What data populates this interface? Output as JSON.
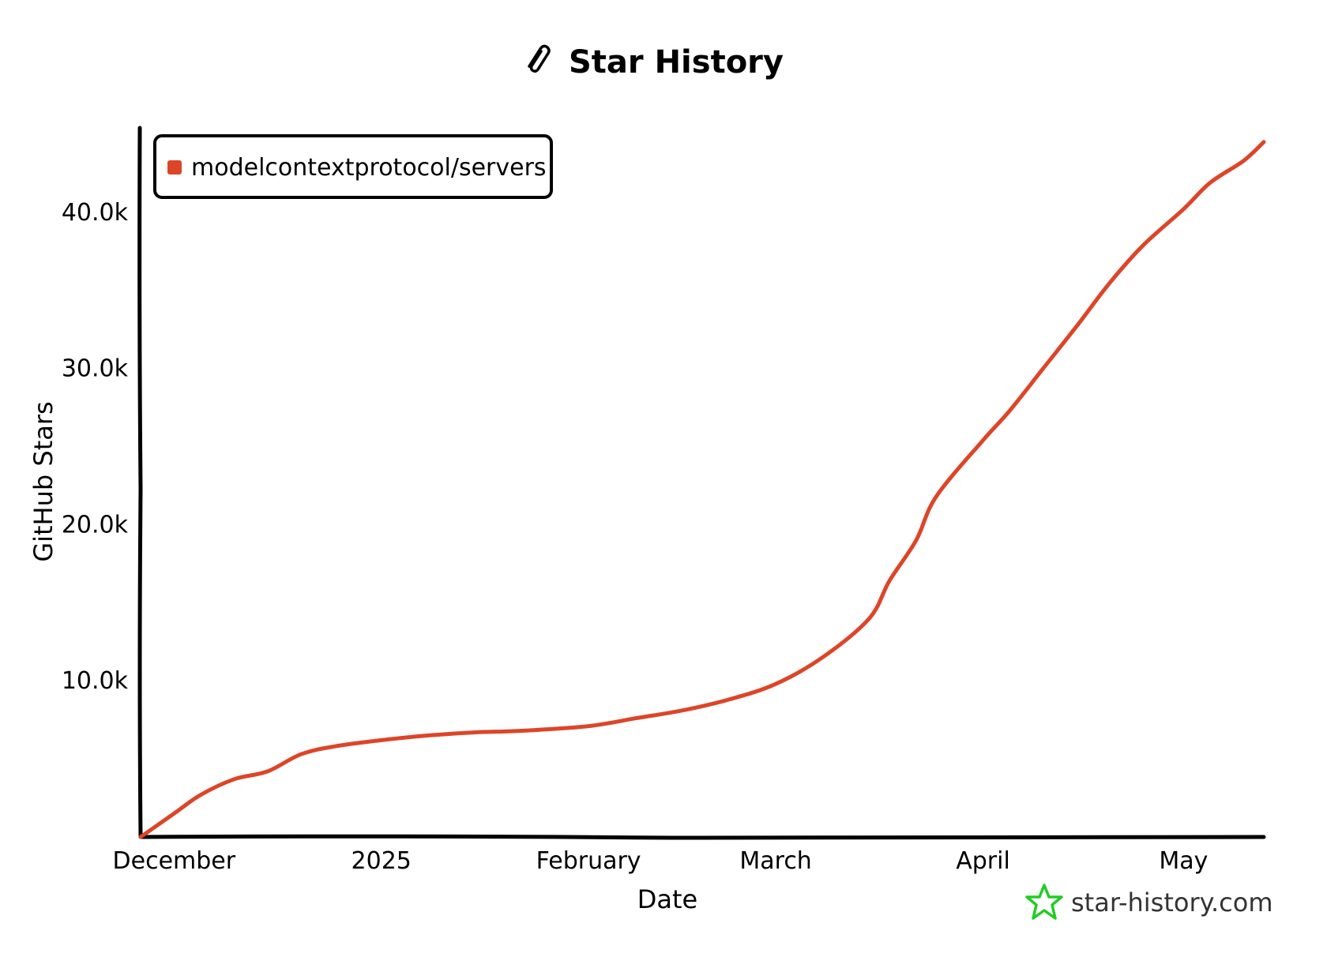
{
  "title": "Star History",
  "watermark": "star-history.com",
  "icons": {
    "title_icon": "paperclip-icon",
    "watermark_icon": "star-outline-icon"
  },
  "colors": {
    "series": "#dd4528",
    "watermark_star": "#22cc22",
    "axis": "#000000"
  },
  "chart_data": {
    "type": "line",
    "title": "Star History",
    "xlabel": "Date",
    "ylabel": "GitHub Stars",
    "x_ticks": [
      "December",
      "2025",
      "February",
      "March",
      "April",
      "May"
    ],
    "x_tick_dates": [
      "2024-12-01",
      "2025-01-01",
      "2025-02-01",
      "2025-03-01",
      "2025-04-01",
      "2025-05-01"
    ],
    "y_ticks": [
      "10.0k",
      "20.0k",
      "30.0k",
      "40.0k"
    ],
    "y_tick_values": [
      10000,
      20000,
      30000,
      40000
    ],
    "xlim": [
      "2024-11-26",
      "2025-05-13"
    ],
    "ylim": [
      0,
      45500
    ],
    "grid": false,
    "legend": "top-left",
    "series": [
      {
        "name": "modelcontextprotocol/servers",
        "color": "#dd4528",
        "x": [
          "2024-11-26",
          "2024-12-01",
          "2024-12-05",
          "2024-12-10",
          "2024-12-15",
          "2024-12-20",
          "2024-12-25",
          "2025-01-01",
          "2025-01-08",
          "2025-01-15",
          "2025-01-22",
          "2025-02-01",
          "2025-02-08",
          "2025-02-15",
          "2025-02-22",
          "2025-03-01",
          "2025-03-08",
          "2025-03-15",
          "2025-03-18",
          "2025-03-22",
          "2025-03-25",
          "2025-04-01",
          "2025-04-05",
          "2025-04-10",
          "2025-04-15",
          "2025-04-20",
          "2025-04-25",
          "2025-05-01",
          "2025-05-05",
          "2025-05-10",
          "2025-05-13"
        ],
        "values": [
          0,
          1500,
          2700,
          3700,
          4200,
          5300,
          5800,
          6200,
          6500,
          6700,
          6800,
          7100,
          7600,
          8100,
          8800,
          9800,
          11500,
          14000,
          16400,
          19000,
          21800,
          25400,
          27300,
          30000,
          32700,
          35500,
          37900,
          40200,
          41900,
          43300,
          44500
        ]
      }
    ]
  }
}
